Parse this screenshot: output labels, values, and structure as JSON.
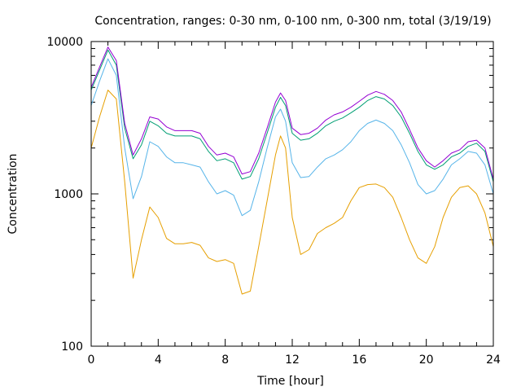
{
  "chart_data": {
    "type": "line",
    "title": "Concentration, ranges: 0-30 nm, 0-100 nm, 0-300 nm, total (3/19/19)",
    "xlabel": "Time [hour]",
    "ylabel": "Concentration",
    "xlim": [
      0,
      24
    ],
    "ylim": [
      100,
      10000
    ],
    "yscale": "log",
    "xticks": [
      0,
      4,
      8,
      12,
      16,
      20,
      24
    ],
    "xtick_labels": [
      "0",
      "4",
      "8",
      "12",
      "16",
      "20",
      "24"
    ],
    "yticks": [
      100,
      1000,
      10000
    ],
    "ytick_labels": [
      "100",
      "1000",
      "10000"
    ],
    "grid": false,
    "legend": "none",
    "series": [
      {
        "color": "#e69f00",
        "x": [
          0,
          0.5,
          1.0,
          1.5,
          2.0,
          2.5,
          3.0,
          3.5,
          4.0,
          4.5,
          5.0,
          5.5,
          6.0,
          6.5,
          7.0,
          7.5,
          8.0,
          8.5,
          9.0,
          9.5,
          10.0,
          10.5,
          11.0,
          11.3,
          11.6,
          12.0,
          12.5,
          13.0,
          13.5,
          14.0,
          14.5,
          15.0,
          15.5,
          16.0,
          16.5,
          17.0,
          17.5,
          18.0,
          18.5,
          19.0,
          19.5,
          20.0,
          20.5,
          21.0,
          21.5,
          22.0,
          22.5,
          23.0,
          23.5,
          24.0
        ],
        "values": [
          2000,
          3200,
          4800,
          4200,
          1200,
          280,
          500,
          820,
          700,
          510,
          470,
          470,
          480,
          460,
          380,
          360,
          370,
          350,
          220,
          230,
          450,
          900,
          1800,
          2400,
          2000,
          700,
          400,
          430,
          550,
          600,
          640,
          700,
          900,
          1100,
          1150,
          1160,
          1100,
          950,
          700,
          500,
          380,
          350,
          450,
          700,
          950,
          1100,
          1130,
          1000,
          750,
          450
        ]
      },
      {
        "color": "#56b4e9",
        "x": [
          0,
          0.5,
          1.0,
          1.5,
          2.0,
          2.5,
          3.0,
          3.5,
          4.0,
          4.5,
          5.0,
          5.5,
          6.0,
          6.5,
          7.0,
          7.5,
          8.0,
          8.5,
          9.0,
          9.5,
          10.0,
          10.5,
          11.0,
          11.3,
          11.6,
          12.0,
          12.5,
          13.0,
          13.5,
          14.0,
          14.5,
          15.0,
          15.5,
          16.0,
          16.5,
          17.0,
          17.5,
          18.0,
          18.5,
          19.0,
          19.5,
          20.0,
          20.5,
          21.0,
          21.5,
          22.0,
          22.5,
          23.0,
          23.5,
          24.0
        ],
        "values": [
          3800,
          5500,
          7700,
          6000,
          2000,
          930,
          1300,
          2200,
          2050,
          1750,
          1600,
          1600,
          1550,
          1500,
          1200,
          1000,
          1050,
          980,
          720,
          780,
          1200,
          2000,
          3200,
          3600,
          3000,
          1600,
          1280,
          1300,
          1500,
          1700,
          1800,
          1950,
          2200,
          2600,
          2900,
          3050,
          2900,
          2600,
          2100,
          1600,
          1150,
          1000,
          1050,
          1250,
          1550,
          1700,
          1900,
          1850,
          1550,
          1000
        ]
      },
      {
        "color": "#009e73",
        "x": [
          0,
          0.5,
          1.0,
          1.5,
          2.0,
          2.5,
          3.0,
          3.5,
          4.0,
          4.5,
          5.0,
          5.5,
          6.0,
          6.5,
          7.0,
          7.5,
          8.0,
          8.5,
          9.0,
          9.5,
          10.0,
          10.5,
          11.0,
          11.3,
          11.6,
          12.0,
          12.5,
          13.0,
          13.5,
          14.0,
          14.5,
          15.0,
          15.5,
          16.0,
          16.5,
          17.0,
          17.5,
          18.0,
          18.5,
          19.0,
          19.5,
          20.0,
          20.5,
          21.0,
          21.5,
          22.0,
          22.5,
          23.0,
          23.5,
          24.0
        ],
        "values": [
          4800,
          6500,
          8800,
          7000,
          2700,
          1700,
          2100,
          3000,
          2800,
          2500,
          2400,
          2400,
          2400,
          2300,
          1900,
          1650,
          1700,
          1600,
          1250,
          1300,
          1700,
          2500,
          3700,
          4300,
          3800,
          2500,
          2250,
          2300,
          2500,
          2800,
          3000,
          3150,
          3400,
          3700,
          4100,
          4350,
          4200,
          3800,
          3200,
          2500,
          1900,
          1550,
          1450,
          1550,
          1750,
          1850,
          2050,
          2150,
          1900,
          1200
        ]
      },
      {
        "color": "#9400d3",
        "x": [
          0,
          0.5,
          1.0,
          1.5,
          2.0,
          2.5,
          3.0,
          3.5,
          4.0,
          4.5,
          5.0,
          5.5,
          6.0,
          6.5,
          7.0,
          7.5,
          8.0,
          8.5,
          9.0,
          9.5,
          10.0,
          10.5,
          11.0,
          11.3,
          11.6,
          12.0,
          12.5,
          13.0,
          13.5,
          14.0,
          14.5,
          15.0,
          15.5,
          16.0,
          16.5,
          17.0,
          17.5,
          18.0,
          18.5,
          19.0,
          19.5,
          20.0,
          20.5,
          21.0,
          21.5,
          22.0,
          22.5,
          23.0,
          23.5,
          24.0
        ],
        "values": [
          5000,
          6800,
          9200,
          7500,
          2900,
          1800,
          2300,
          3200,
          3100,
          2750,
          2600,
          2600,
          2600,
          2500,
          2050,
          1800,
          1850,
          1750,
          1350,
          1400,
          1850,
          2700,
          4000,
          4600,
          4100,
          2700,
          2450,
          2500,
          2700,
          3050,
          3300,
          3450,
          3700,
          4050,
          4450,
          4700,
          4500,
          4100,
          3450,
          2650,
          2000,
          1650,
          1500,
          1650,
          1850,
          1950,
          2200,
          2250,
          2000,
          1250
        ]
      }
    ]
  }
}
